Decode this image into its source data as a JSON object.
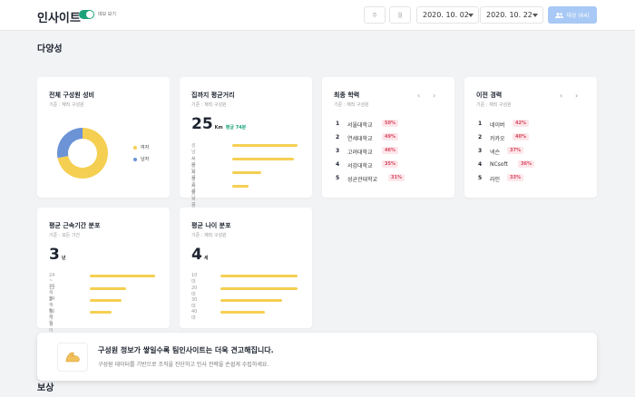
{
  "header": {
    "brand": "인사이트",
    "toggle_label": "데모 보기",
    "range_week": "주",
    "range_month": "월",
    "date_start": "2020. 10. 02",
    "date_end": "2020. 10. 22",
    "target_button": "대상 (64)"
  },
  "sections": {
    "diversity": "다양성",
    "compensation": "보상"
  },
  "cards": {
    "gender": {
      "title": "전체 구성원 성비",
      "sub": "기준 : 재직 구성원",
      "legend": [
        {
          "label": "여자",
          "color": "#f5cf52"
        },
        {
          "label": "남자",
          "color": "#6b93d6"
        }
      ],
      "female_share": 0.72
    },
    "commute": {
      "title": "집까지 평균거리",
      "sub": "기준 : 재직 구성원",
      "value": "25",
      "unit": "Km",
      "avg": "평균 74분",
      "bars": [
        {
          "label": "성남시 분당구",
          "value": 1.0
        },
        {
          "label": "서울시 서초구",
          "value": 0.95
        },
        {
          "label": "서울시 강남구",
          "value": 0.45
        },
        {
          "label": "서울시 용산구",
          "value": 0.25
        }
      ]
    },
    "education": {
      "title": "최종 학력",
      "sub": "기준 : 재직 구성원",
      "items": [
        {
          "rank": "1",
          "name": "서울대학교",
          "pct": "50%"
        },
        {
          "rank": "2",
          "name": "연세대학교",
          "pct": "49%"
        },
        {
          "rank": "3",
          "name": "고려대학교",
          "pct": "46%"
        },
        {
          "rank": "4",
          "name": "서강대학교",
          "pct": "35%"
        },
        {
          "rank": "5",
          "name": "성균관대학교",
          "pct": "31%"
        }
      ]
    },
    "career": {
      "title": "이전 경력",
      "sub": "기준 : 재직 구성원",
      "items": [
        {
          "rank": "1",
          "name": "네이버",
          "pct": "42%"
        },
        {
          "rank": "2",
          "name": "카카오",
          "pct": "40%"
        },
        {
          "rank": "3",
          "name": "넥슨",
          "pct": "37%"
        },
        {
          "rank": "4",
          "name": "NCsoft",
          "pct": "36%"
        },
        {
          "rank": "5",
          "name": "라인",
          "pct": "33%"
        }
      ]
    },
    "tenure": {
      "title": "평균 근속기간 분포",
      "sub": "기준 : 모든 기간",
      "value": "3",
      "unit": "년",
      "bars": [
        {
          "label": "24 ~ 36개월",
          "value": 0.98
        },
        {
          "label": "12 ~ 24개월",
          "value": 0.55
        },
        {
          "label": "3 ~ 6개월",
          "value": 0.48
        },
        {
          "label": "36개월 이상",
          "value": 0.33
        }
      ]
    },
    "age": {
      "title": "평균 나이 분포",
      "sub": "기준 : 재직 구성원",
      "value": "4",
      "unit": "세",
      "bars": [
        {
          "label": "10대",
          "value": 1.0
        },
        {
          "label": "20대",
          "value": 1.0
        },
        {
          "label": "30대",
          "value": 0.8
        },
        {
          "label": "40대",
          "value": 0.58
        }
      ]
    }
  },
  "banner": {
    "title": "구성원 정보가 쌓일수록 팀인사이트는 더욱 견고해집니다.",
    "desc": "구성원 데이터를 기반으로 조직을 진단하고 인사 전략을 손쉽게 수립하세요."
  },
  "icons": {
    "prev": "‹",
    "next": "›",
    "banner_icon": "💪",
    "users_icon": "👥"
  }
}
